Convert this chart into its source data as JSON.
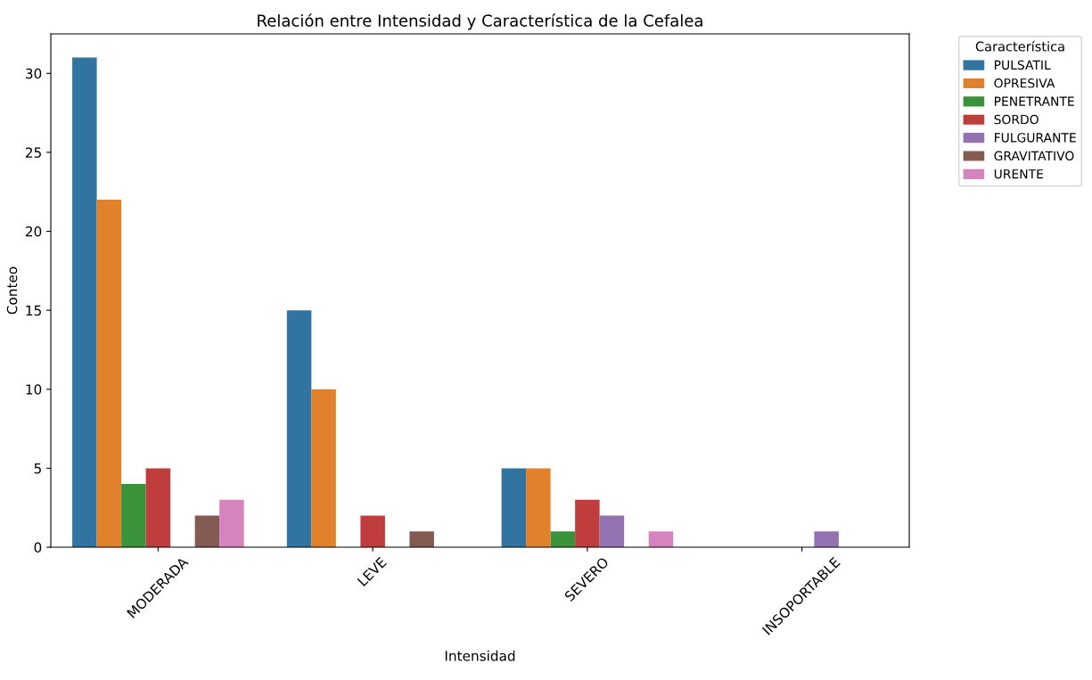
{
  "chart_data": {
    "type": "bar",
    "title": "Relación entre Intensidad y Característica de la Cefalea",
    "xlabel": "Intensidad",
    "ylabel": "Conteo",
    "legend_title": "Característica",
    "legend": "top right",
    "categories": [
      "MODERADA",
      "LEVE",
      "SEVERO",
      "INSOPORTABLE"
    ],
    "series": [
      {
        "name": "PULSATIL",
        "color": "#3274a1",
        "values": [
          31,
          15,
          5,
          null
        ]
      },
      {
        "name": "OPRESIVA",
        "color": "#e1812c",
        "values": [
          22,
          10,
          5,
          null
        ]
      },
      {
        "name": "PENETRANTE",
        "color": "#3a923a",
        "values": [
          4,
          null,
          1,
          null
        ]
      },
      {
        "name": "SORDO",
        "color": "#c03d3e",
        "values": [
          5,
          2,
          3,
          null
        ]
      },
      {
        "name": "FULGURANTE",
        "color": "#9372b2",
        "values": [
          null,
          null,
          2,
          1
        ]
      },
      {
        "name": "GRAVITATIVO",
        "color": "#845b53",
        "values": [
          2,
          1,
          null,
          null
        ]
      },
      {
        "name": "URENTE",
        "color": "#d684bd",
        "values": [
          3,
          null,
          1,
          null
        ]
      }
    ],
    "ylim": [
      0,
      32.5
    ],
    "yticks": [
      0,
      5,
      10,
      15,
      20,
      25,
      30
    ],
    "grid": false
  }
}
